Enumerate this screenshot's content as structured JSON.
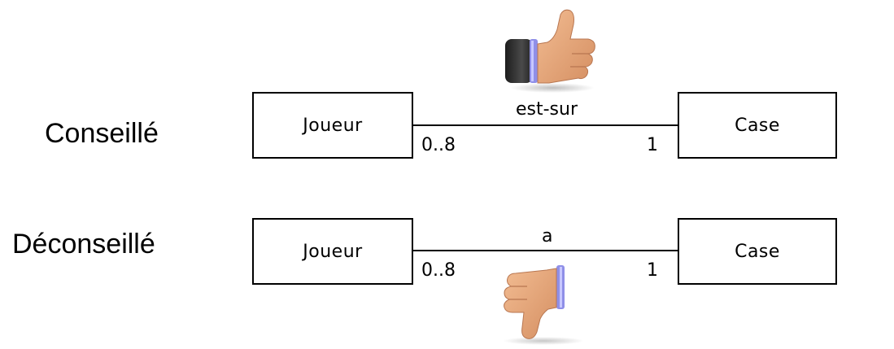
{
  "rows": [
    {
      "label": "Conseillé",
      "left_class": "Joueur",
      "right_class": "Case",
      "association": "est-sur",
      "left_multiplicity": "0..8",
      "right_multiplicity": "1",
      "icon": "thumbs-up-icon"
    },
    {
      "label": "Déconseillé",
      "left_class": "Joueur",
      "right_class": "Case",
      "association": "a",
      "left_multiplicity": "0..8",
      "right_multiplicity": "1",
      "icon": "thumbs-down-icon"
    }
  ],
  "colors": {
    "skin": "#e8a77a",
    "skin_shadow": "#c9865c",
    "sleeve": "#2b2b2b",
    "cuff": "#8f8fe8"
  }
}
